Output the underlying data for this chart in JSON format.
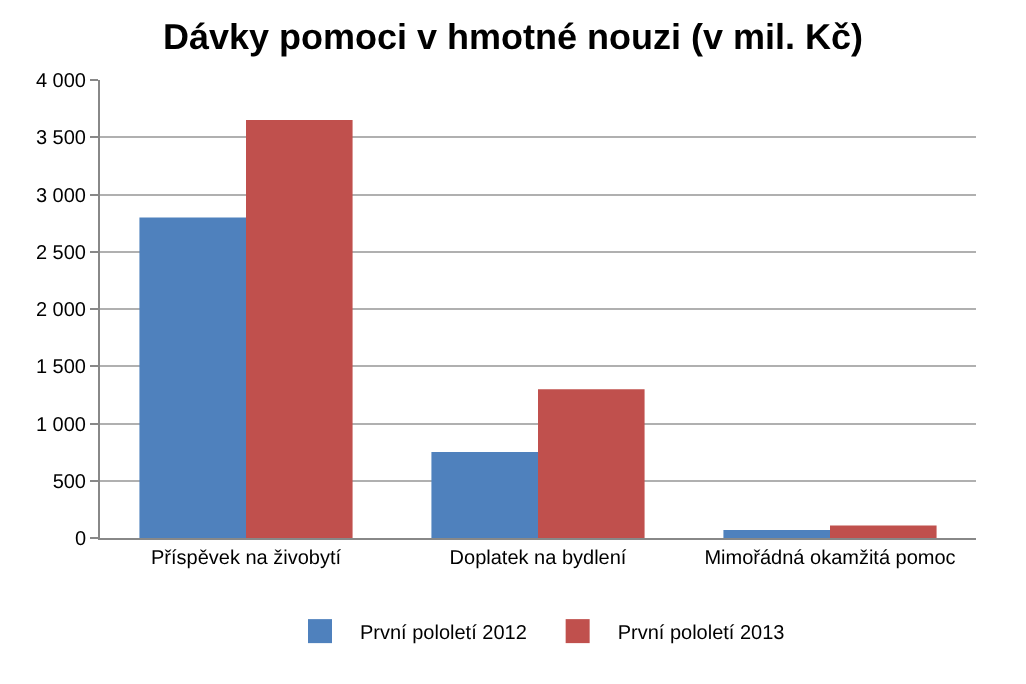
{
  "chart_data": {
    "type": "bar",
    "title": "Dávky pomoci v hmotné nouzi (v mil. Kč)",
    "categories": [
      "Příspěvek na živobytí",
      "Doplatek na bydlení",
      "Mimořádná okamžitá pomoc"
    ],
    "series": [
      {
        "name": "První pololetí 2012",
        "color": "#4f81bd",
        "values": [
          2800,
          750,
          70
        ]
      },
      {
        "name": "První pololetí 2013",
        "color": "#c0504d",
        "values": [
          3650,
          1300,
          110
        ]
      }
    ],
    "ylim": [
      0,
      4000
    ],
    "yticks": [
      0,
      500,
      {
        "value": 1000,
        "label": "1 000"
      },
      {
        "value": 1500,
        "label": "1 500"
      },
      {
        "value": 2000,
        "label": "2 000"
      },
      {
        "value": 2500,
        "label": "2 500"
      },
      {
        "value": 3000,
        "label": "3 000"
      },
      {
        "value": 3500,
        "label": "3 500"
      },
      {
        "value": 4000,
        "label": "4 000"
      }
    ],
    "grid": "y",
    "legend": "bottom"
  }
}
